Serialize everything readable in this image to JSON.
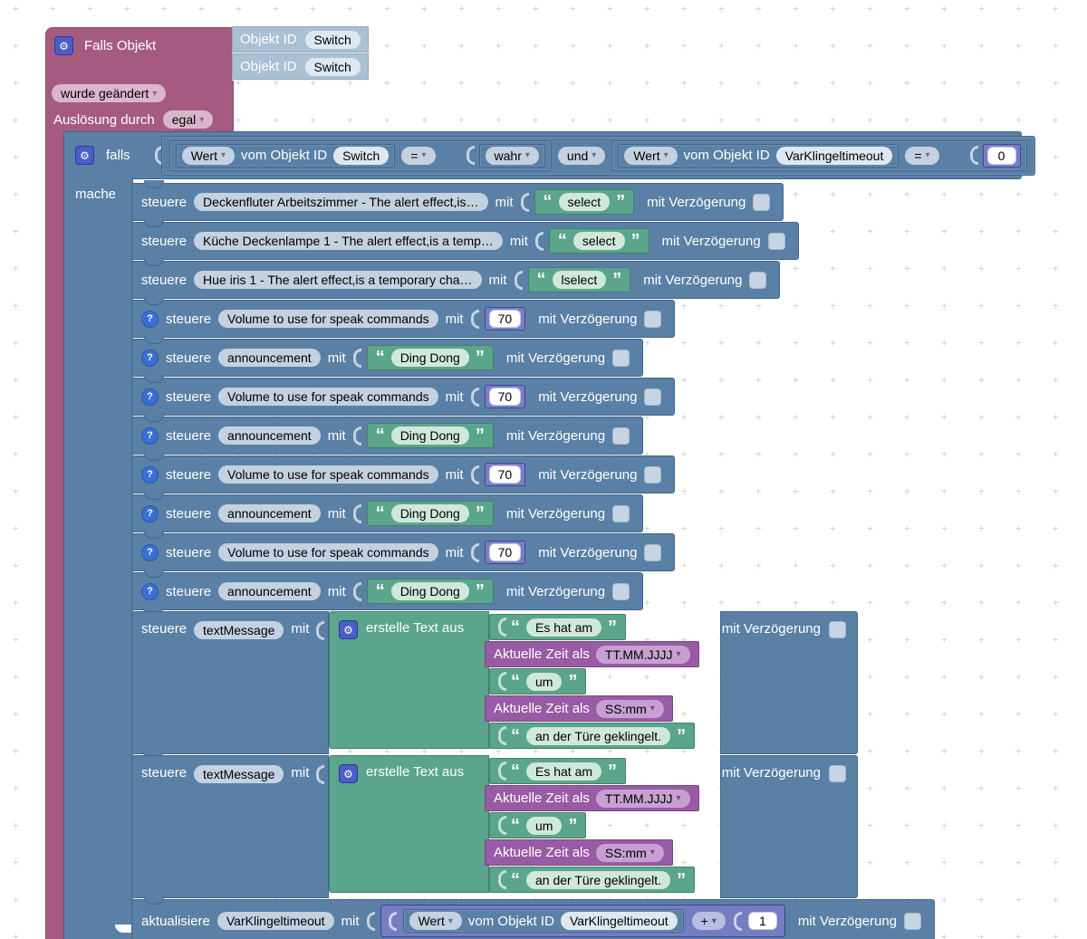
{
  "labels": {
    "steuere": "steuere",
    "mit": "mit",
    "mit_verzoegerung": "mit Verzögerung",
    "aktualisiere": "aktualisiere",
    "open_quote": "“",
    "close_quote": "”"
  },
  "trigger": {
    "title": "Falls Objekt",
    "object_inputs": [
      {
        "label": "Objekt ID",
        "value": "Switch"
      },
      {
        "label": "Objekt ID",
        "value": "Switch"
      }
    ],
    "condition_dropdown": "wurde geändert",
    "trigger_label": "Auslösung durch",
    "trigger_dropdown": "egal"
  },
  "if_block": {
    "keyword": "falls",
    "do_keyword": "mache",
    "logic_operator": "und",
    "conditions": [
      {
        "selector": "Wert",
        "of_label": "vom Objekt ID",
        "object_id": "Switch",
        "operator": "=",
        "value": "wahr",
        "value_kind": "dropdown"
      },
      {
        "selector": "Wert",
        "of_label": "vom Objekt ID",
        "object_id": "VarKlingeltimeout",
        "operator": "=",
        "value": "0",
        "value_kind": "number"
      }
    ]
  },
  "statements": [
    {
      "kind": "control",
      "help": false,
      "object": "Deckenfluter Arbeitszimmer - The alert effect,is…",
      "value_type": "string",
      "value": "select"
    },
    {
      "kind": "control",
      "help": false,
      "object": "Küche Deckenlampe 1 - The alert effect,is a temp…",
      "value_type": "string",
      "value": "select"
    },
    {
      "kind": "control",
      "help": false,
      "object": "Hue iris 1 - The alert effect,is a temporary cha…",
      "value_type": "string",
      "value": "lselect"
    },
    {
      "kind": "control",
      "help": true,
      "object": "Volume to use for speak commands",
      "value_type": "number",
      "value": "70"
    },
    {
      "kind": "control",
      "help": true,
      "object": "announcement",
      "value_type": "string",
      "value": "Ding Dong"
    },
    {
      "kind": "control",
      "help": true,
      "object": "Volume to use for speak commands",
      "value_type": "number",
      "value": "70"
    },
    {
      "kind": "control",
      "help": true,
      "object": "announcement",
      "value_type": "string",
      "value": "Ding Dong"
    },
    {
      "kind": "control",
      "help": true,
      "object": "Volume to use for speak commands",
      "value_type": "number",
      "value": "70"
    },
    {
      "kind": "control",
      "help": true,
      "object": "announcement",
      "value_type": "string",
      "value": "Ding Dong"
    },
    {
      "kind": "control",
      "help": true,
      "object": "Volume to use for speak commands",
      "value_type": "number",
      "value": "70"
    },
    {
      "kind": "control",
      "help": true,
      "object": "announcement",
      "value_type": "string",
      "value": "Ding Dong"
    },
    {
      "kind": "text_join",
      "object": "textMessage",
      "create_label": "erstelle Text aus",
      "items": [
        {
          "type": "text",
          "value": "Es hat am"
        },
        {
          "type": "time",
          "label": "Aktuelle Zeit als",
          "format": "TT.MM.JJJJ"
        },
        {
          "type": "text",
          "value": "um"
        },
        {
          "type": "time",
          "label": "Aktuelle Zeit als",
          "format": "SS:mm"
        },
        {
          "type": "text",
          "value": "an der Türe geklingelt."
        }
      ]
    },
    {
      "kind": "text_join",
      "object": "textMessage",
      "create_label": "erstelle Text aus",
      "items": [
        {
          "type": "text",
          "value": "Es hat am"
        },
        {
          "type": "time",
          "label": "Aktuelle Zeit als",
          "format": "TT.MM.JJJJ"
        },
        {
          "type": "text",
          "value": "um"
        },
        {
          "type": "time",
          "label": "Aktuelle Zeit als",
          "format": "SS:mm"
        },
        {
          "type": "text",
          "value": "an der Türe geklingelt."
        }
      ]
    },
    {
      "kind": "update",
      "object": "VarKlingeltimeout",
      "expression": {
        "selector": "Wert",
        "of_label": "vom Objekt ID",
        "object_id": "VarKlingeltimeout",
        "operator": "+",
        "value": "1"
      }
    }
  ],
  "colors": {
    "trigger_pink": "#a55b80",
    "system_blue": "#5b80a5",
    "string_green": "#5ba58c",
    "time_purple": "#995ba5",
    "number_indigo": "#767cc0",
    "shadow_blue": "#a9c0d5",
    "help_icon_blue": "#3a70d4",
    "gear_icon_blue": "#4a5ec6",
    "grid_mark": "#ccd1d6"
  }
}
